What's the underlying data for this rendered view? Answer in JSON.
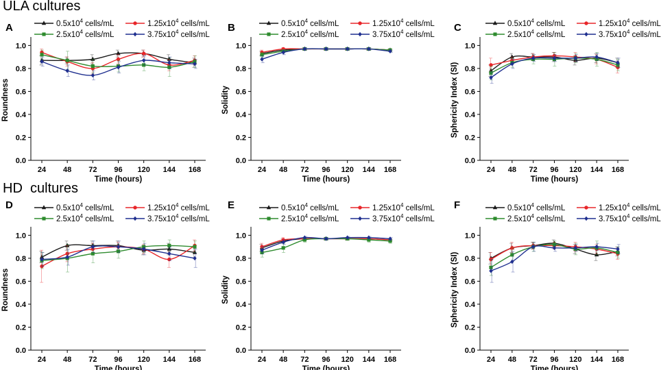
{
  "sections": [
    {
      "title": "ULA cultures"
    },
    {
      "title": "HD  cultures"
    }
  ],
  "legend_entries": [
    {
      "name": "0.5x10^4 cells/mL",
      "base": "0.5x10",
      "exp": "4",
      "unit": " cells/mL",
      "color": "#1a1a1a",
      "marker": "triangle"
    },
    {
      "name": "1.25x10^4 cells/mL",
      "base": "1.25x10",
      "exp": "4",
      "unit": " cells/mL",
      "color": "#e8262a",
      "marker": "circle"
    },
    {
      "name": "2.5x10^4 cells/mL",
      "base": "2.5x10",
      "exp": "4",
      "unit": " cells/mL",
      "color": "#2e8b2e",
      "marker": "square"
    },
    {
      "name": "3.75x10^4 cells/mL",
      "base": "3.75x10",
      "exp": "4",
      "unit": " cells/mL",
      "color": "#1f2f8f",
      "marker": "diamond"
    }
  ],
  "chart_data": [
    {
      "panel": "A",
      "section": "ULA cultures",
      "type": "line",
      "xlabel": "Time (hours)",
      "ylabel": "Roundness",
      "x": [
        24,
        48,
        72,
        96,
        120,
        144,
        168
      ],
      "xticks": [
        "24",
        "48",
        "72",
        "96",
        "120",
        "144",
        "168"
      ],
      "yticks": [
        "0.0",
        "0.2",
        "0.4",
        "0.6",
        "0.8",
        "1.0"
      ],
      "ylim": [
        0,
        1.05
      ],
      "series": [
        {
          "name": "0.5x10^4 cells/mL",
          "values": [
            0.87,
            0.87,
            0.88,
            0.93,
            0.93,
            0.88,
            0.85
          ],
          "errors": [
            0.04,
            0.03,
            0.04,
            0.03,
            0.03,
            0.04,
            0.04
          ]
        },
        {
          "name": "1.25x10^4 cells/mL",
          "values": [
            0.94,
            0.86,
            0.8,
            0.88,
            0.93,
            0.83,
            0.87
          ],
          "errors": [
            0.03,
            0.04,
            0.05,
            0.04,
            0.03,
            0.05,
            0.04
          ]
        },
        {
          "name": "2.5x10^4 cells/mL",
          "values": [
            0.92,
            0.87,
            0.82,
            0.82,
            0.83,
            0.81,
            0.86
          ],
          "errors": [
            0.04,
            0.08,
            0.06,
            0.05,
            0.05,
            0.08,
            0.05
          ]
        },
        {
          "name": "3.75x10^4 cells/mL",
          "values": [
            0.86,
            0.78,
            0.74,
            0.81,
            0.87,
            0.85,
            0.84
          ],
          "errors": [
            0.04,
            0.05,
            0.04,
            0.05,
            0.04,
            0.05,
            0.04
          ]
        }
      ]
    },
    {
      "panel": "B",
      "section": "ULA cultures",
      "type": "line",
      "xlabel": "Time (hours)",
      "ylabel": "Solidity",
      "x": [
        24,
        48,
        72,
        96,
        120,
        144,
        168
      ],
      "xticks": [
        "24",
        "48",
        "72",
        "96",
        "120",
        "144",
        "168"
      ],
      "yticks": [
        "0.0",
        "0.2",
        "0.4",
        "0.6",
        "0.8",
        "1.0"
      ],
      "ylim": [
        0,
        1.05
      ],
      "series": [
        {
          "name": "0.5x10^4 cells/mL",
          "values": [
            0.93,
            0.96,
            0.97,
            0.97,
            0.97,
            0.97,
            0.96
          ],
          "errors": [
            0.02,
            0.01,
            0.01,
            0.01,
            0.01,
            0.01,
            0.01
          ]
        },
        {
          "name": "1.25x10^4 cells/mL",
          "values": [
            0.94,
            0.97,
            0.97,
            0.97,
            0.97,
            0.97,
            0.96
          ],
          "errors": [
            0.02,
            0.01,
            0.01,
            0.01,
            0.01,
            0.01,
            0.01
          ]
        },
        {
          "name": "2.5x10^4 cells/mL",
          "values": [
            0.92,
            0.95,
            0.97,
            0.97,
            0.97,
            0.97,
            0.96
          ],
          "errors": [
            0.02,
            0.01,
            0.01,
            0.01,
            0.01,
            0.01,
            0.01
          ]
        },
        {
          "name": "3.75x10^4 cells/mL",
          "values": [
            0.88,
            0.94,
            0.97,
            0.97,
            0.97,
            0.97,
            0.95
          ],
          "errors": [
            0.03,
            0.02,
            0.01,
            0.01,
            0.01,
            0.01,
            0.01
          ]
        }
      ]
    },
    {
      "panel": "C",
      "section": "ULA cultures",
      "type": "line",
      "xlabel": "Time (hours)",
      "ylabel": "Sphericity Index (SI)",
      "x": [
        24,
        48,
        72,
        96,
        120,
        144,
        168
      ],
      "xticks": [
        "24",
        "48",
        "72",
        "96",
        "120",
        "144",
        "168"
      ],
      "yticks": [
        "0.0",
        "0.2",
        "0.4",
        "0.6",
        "0.8",
        "1.0"
      ],
      "ylim": [
        0,
        1.05
      ],
      "series": [
        {
          "name": "0.5x10^4 cells/mL",
          "values": [
            0.78,
            0.9,
            0.9,
            0.9,
            0.87,
            0.89,
            0.85
          ],
          "errors": [
            0.05,
            0.03,
            0.03,
            0.04,
            0.04,
            0.04,
            0.04
          ]
        },
        {
          "name": "1.25x10^4 cells/mL",
          "values": [
            0.83,
            0.87,
            0.9,
            0.91,
            0.9,
            0.88,
            0.81
          ],
          "errors": [
            0.06,
            0.03,
            0.03,
            0.03,
            0.04,
            0.04,
            0.05
          ]
        },
        {
          "name": "2.5x10^4 cells/mL",
          "values": [
            0.76,
            0.85,
            0.88,
            0.88,
            0.89,
            0.88,
            0.83
          ],
          "errors": [
            0.06,
            0.04,
            0.04,
            0.06,
            0.04,
            0.06,
            0.05
          ]
        },
        {
          "name": "3.75x10^4 cells/mL",
          "values": [
            0.72,
            0.84,
            0.89,
            0.89,
            0.89,
            0.9,
            0.85
          ],
          "errors": [
            0.05,
            0.04,
            0.03,
            0.03,
            0.03,
            0.03,
            0.04
          ]
        }
      ]
    },
    {
      "panel": "D",
      "section": "HD  cultures",
      "type": "line",
      "xlabel": "Time (hours)",
      "ylabel": "Roundness",
      "x": [
        24,
        48,
        72,
        96,
        120,
        144,
        168
      ],
      "xticks": [
        "24",
        "48",
        "72",
        "96",
        "120",
        "144",
        "168"
      ],
      "yticks": [
        "0.0",
        "0.2",
        "0.4",
        "0.6",
        "0.8",
        "1.0"
      ],
      "ylim": [
        0,
        1.05
      ],
      "series": [
        {
          "name": "0.5x10^4 cells/mL",
          "values": [
            0.81,
            0.91,
            0.91,
            0.91,
            0.87,
            0.88,
            0.85
          ],
          "errors": [
            0.05,
            0.04,
            0.04,
            0.04,
            0.04,
            0.05,
            0.05
          ]
        },
        {
          "name": "1.25x10^4 cells/mL",
          "values": [
            0.73,
            0.84,
            0.88,
            0.9,
            0.88,
            0.79,
            0.91
          ],
          "errors": [
            0.14,
            0.07,
            0.05,
            0.04,
            0.04,
            0.07,
            0.05
          ]
        },
        {
          "name": "2.5x10^4 cells/mL",
          "values": [
            0.78,
            0.8,
            0.84,
            0.86,
            0.9,
            0.91,
            0.9
          ],
          "errors": [
            0.07,
            0.12,
            0.08,
            0.06,
            0.05,
            0.05,
            0.05
          ]
        },
        {
          "name": "3.75x10^4 cells/mL",
          "values": [
            0.79,
            0.81,
            0.9,
            0.9,
            0.88,
            0.84,
            0.8
          ],
          "errors": [
            0.06,
            0.07,
            0.05,
            0.05,
            0.05,
            0.06,
            0.08
          ]
        }
      ]
    },
    {
      "panel": "E",
      "section": "HD  cultures",
      "type": "line",
      "xlabel": "Time (hours)",
      "ylabel": "Solidity",
      "x": [
        24,
        48,
        72,
        96,
        120,
        144,
        168
      ],
      "xticks": [
        "24",
        "48",
        "72",
        "96",
        "120",
        "144",
        "168"
      ],
      "yticks": [
        "0.0",
        "0.2",
        "0.4",
        "0.6",
        "0.8",
        "1.0"
      ],
      "ylim": [
        0,
        1.05
      ],
      "series": [
        {
          "name": "0.5x10^4 cells/mL",
          "values": [
            0.89,
            0.95,
            0.97,
            0.97,
            0.97,
            0.97,
            0.96
          ],
          "errors": [
            0.03,
            0.02,
            0.01,
            0.01,
            0.01,
            0.01,
            0.01
          ]
        },
        {
          "name": "1.25x10^4 cells/mL",
          "values": [
            0.9,
            0.96,
            0.97,
            0.97,
            0.97,
            0.97,
            0.96
          ],
          "errors": [
            0.03,
            0.02,
            0.01,
            0.01,
            0.01,
            0.01,
            0.01
          ]
        },
        {
          "name": "2.5x10^4 cells/mL",
          "values": [
            0.85,
            0.89,
            0.96,
            0.97,
            0.97,
            0.96,
            0.95
          ],
          "errors": [
            0.04,
            0.04,
            0.02,
            0.01,
            0.01,
            0.02,
            0.02
          ]
        },
        {
          "name": "3.75x10^4 cells/mL",
          "values": [
            0.87,
            0.94,
            0.98,
            0.97,
            0.98,
            0.98,
            0.97
          ],
          "errors": [
            0.03,
            0.02,
            0.01,
            0.01,
            0.01,
            0.01,
            0.01
          ]
        }
      ]
    },
    {
      "panel": "F",
      "section": "HD  cultures",
      "type": "line",
      "xlabel": "Time (hours)",
      "ylabel": "Sphericity Index (SI)",
      "x": [
        24,
        48,
        72,
        96,
        120,
        144,
        168
      ],
      "xticks": [
        "24",
        "48",
        "72",
        "96",
        "120",
        "144",
        "168"
      ],
      "yticks": [
        "0.0",
        "0.2",
        "0.4",
        "0.6",
        "0.8",
        "1.0"
      ],
      "ylim": [
        0,
        1.05
      ],
      "series": [
        {
          "name": "0.5x10^4 cells/mL",
          "values": [
            0.8,
            0.89,
            0.91,
            0.93,
            0.88,
            0.83,
            0.86
          ],
          "errors": [
            0.05,
            0.04,
            0.03,
            0.03,
            0.04,
            0.05,
            0.04
          ]
        },
        {
          "name": "1.25x10^4 cells/mL",
          "values": [
            0.79,
            0.89,
            0.91,
            0.91,
            0.9,
            0.88,
            0.84
          ],
          "errors": [
            0.06,
            0.05,
            0.03,
            0.03,
            0.04,
            0.04,
            0.05
          ]
        },
        {
          "name": "2.5x10^4 cells/mL",
          "values": [
            0.72,
            0.83,
            0.9,
            0.92,
            0.88,
            0.89,
            0.85
          ],
          "errors": [
            0.07,
            0.06,
            0.04,
            0.03,
            0.05,
            0.06,
            0.05
          ]
        },
        {
          "name": "3.75x10^4 cells/mL",
          "values": [
            0.69,
            0.77,
            0.9,
            0.89,
            0.89,
            0.9,
            0.88
          ],
          "errors": [
            0.1,
            0.09,
            0.04,
            0.03,
            0.03,
            0.03,
            0.04
          ]
        }
      ]
    }
  ]
}
